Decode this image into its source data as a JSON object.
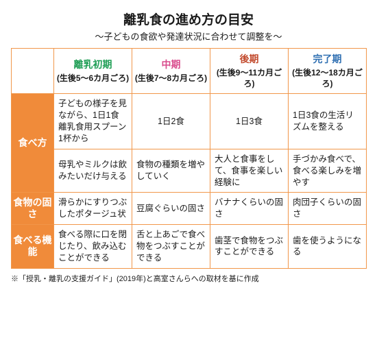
{
  "title": "離乳食の進め方の目安",
  "subtitle": "〜子どもの食欲や発達状況に合わせて調整を〜",
  "stages": [
    {
      "name": "離乳初期",
      "age": "(生後5〜6カ月ごろ)",
      "color": "#1f9e55"
    },
    {
      "name": "中期",
      "age": "(生後7〜8カ月ごろ)",
      "color": "#d94b8c"
    },
    {
      "name": "後期",
      "age": "(生後9〜11カ月ごろ)",
      "color": "#c24a2d"
    },
    {
      "name": "完了期",
      "age": "(生後12〜18カ月ごろ)",
      "color": "#2f6fb2"
    }
  ],
  "rows": {
    "tabekata": {
      "label": "食べ方",
      "r1": [
        "子どもの様子を見ながら、1日1食離乳食用スプーン1杯から",
        "1日2食",
        "1日3食",
        "1日3食の生活リズムを整える"
      ],
      "r2": [
        "母乳やミルクは飲みたいだけ与える",
        "食物の種類を増やしていく",
        "大人と食事をして、食事を楽しい経験に",
        "手づかみ食べで、食べる楽しみを増やす"
      ]
    },
    "katasa": {
      "label": "食物の固さ",
      "cells": [
        "滑らかにすりつぶしたポタージュ状",
        "豆腐ぐらいの固さ",
        "バナナくらいの固さ",
        "肉団子くらいの固さ"
      ]
    },
    "kinou": {
      "label": "食べる機能",
      "cells": [
        "食べる際に口を閉じたり、飲み込むことができる",
        "舌と上あごで食べ物をつぶすことができる",
        "歯茎で食物をつぶすことができる",
        "歯を使うようになる"
      ]
    }
  },
  "footnote": "※「授乳・離乳の支援ガイド」(2019年)と高室さんらへの取材を基に作成",
  "colors": {
    "border": "#f19649",
    "rowhead_bg": "#f08b3a"
  }
}
